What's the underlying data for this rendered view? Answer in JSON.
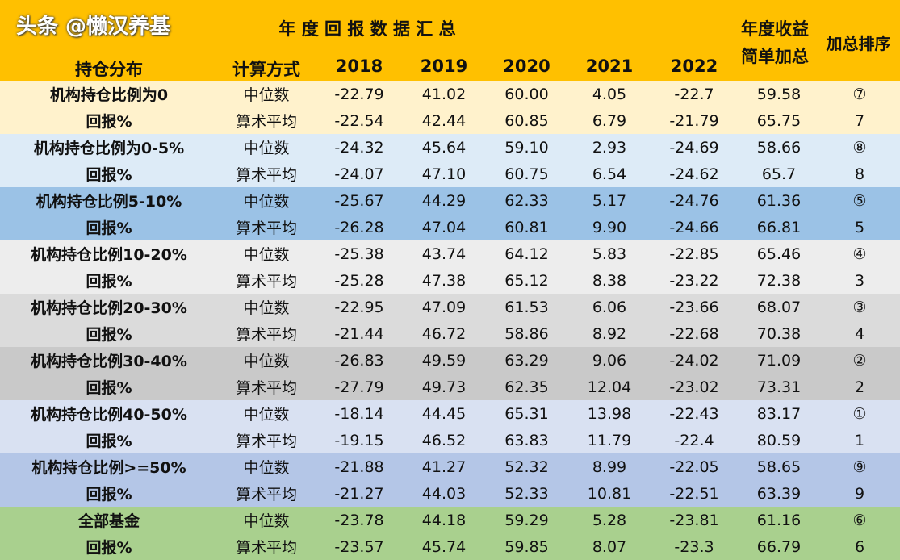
{
  "header": {
    "title": "年 度 回 报 数 据 汇 总",
    "col_group": "持仓分布",
    "col_method": "计算方式",
    "years": [
      "2018",
      "2019",
      "2020",
      "2021",
      "2022"
    ],
    "col_sum": [
      "年度收益",
      "简单加总"
    ],
    "col_rank": "加总排序"
  },
  "colors": {
    "header": "#FFC000",
    "groups": [
      "#FFF2CC",
      "#DDEBF7",
      "#9BC2E6",
      "#EDEDED",
      "#DBDBDB",
      "#C9C9C9",
      "#D9E1F2",
      "#B4C6E7",
      "#A9D08E"
    ]
  },
  "groups": [
    {
      "name": "机构持仓比例为0",
      "sub": "回报%",
      "rows": [
        [
          "中位数",
          "-22.79",
          "41.02",
          "60.00",
          "4.05",
          "-22.7",
          "59.58",
          "⑦"
        ],
        [
          "算术平均",
          "-22.54",
          "42.44",
          "60.85",
          "6.79",
          "-21.79",
          "65.75",
          "7"
        ]
      ]
    },
    {
      "name": "机构持仓比例为0-5%",
      "sub": "回报%",
      "rows": [
        [
          "中位数",
          "-24.32",
          "45.64",
          "59.10",
          "2.93",
          "-24.69",
          "58.66",
          "⑧"
        ],
        [
          "算术平均",
          "-24.07",
          "47.10",
          "60.75",
          "6.54",
          "-24.62",
          "65.7",
          "8"
        ]
      ]
    },
    {
      "name": "机构持仓比例5-10%",
      "sub": "回报%",
      "rows": [
        [
          "中位数",
          "-25.67",
          "44.29",
          "62.33",
          "5.17",
          "-24.76",
          "61.36",
          "⑤"
        ],
        [
          "算术平均",
          "-26.28",
          "47.04",
          "60.81",
          "9.90",
          "-24.66",
          "66.81",
          "5"
        ]
      ]
    },
    {
      "name": "机构持仓比例10-20%",
      "sub": "回报%",
      "rows": [
        [
          "中位数",
          "-25.38",
          "43.74",
          "64.12",
          "5.83",
          "-22.85",
          "65.46",
          "④"
        ],
        [
          "算术平均",
          "-25.28",
          "47.38",
          "65.12",
          "8.38",
          "-23.22",
          "72.38",
          "3"
        ]
      ]
    },
    {
      "name": "机构持仓比例20-30%",
      "sub": "回报%",
      "rows": [
        [
          "中位数",
          "-22.95",
          "47.09",
          "61.53",
          "6.06",
          "-23.66",
          "68.07",
          "③"
        ],
        [
          "算术平均",
          "-21.44",
          "46.72",
          "58.86",
          "8.92",
          "-22.68",
          "70.38",
          "4"
        ]
      ]
    },
    {
      "name": "机构持仓比例30-40%",
      "sub": "回报%",
      "rows": [
        [
          "中位数",
          "-26.83",
          "49.59",
          "63.29",
          "9.06",
          "-24.02",
          "71.09",
          "②"
        ],
        [
          "算术平均",
          "-27.79",
          "49.73",
          "62.35",
          "12.04",
          "-23.02",
          "73.31",
          "2"
        ]
      ]
    },
    {
      "name": "机构持仓比例40-50%",
      "sub": "回报%",
      "rows": [
        [
          "中位数",
          "-18.14",
          "44.45",
          "65.31",
          "13.98",
          "-22.43",
          "83.17",
          "①"
        ],
        [
          "算术平均",
          "-19.15",
          "46.52",
          "63.83",
          "11.79",
          "-22.4",
          "80.59",
          "1"
        ]
      ]
    },
    {
      "name": "机构持仓比例>=50%",
      "sub": "回报%",
      "rows": [
        [
          "中位数",
          "-21.88",
          "41.27",
          "52.32",
          "8.99",
          "-22.05",
          "58.65",
          "⑨"
        ],
        [
          "算术平均",
          "-21.27",
          "44.03",
          "52.33",
          "10.81",
          "-22.51",
          "63.39",
          "9"
        ]
      ]
    },
    {
      "name": "全部基金",
      "sub": "回报%",
      "rows": [
        [
          "中位数",
          "-23.78",
          "44.18",
          "59.29",
          "5.28",
          "-23.81",
          "61.16",
          "⑥"
        ],
        [
          "算术平均",
          "-23.57",
          "45.74",
          "59.85",
          "8.07",
          "-23.3",
          "66.79",
          "6"
        ]
      ]
    }
  ],
  "watermark": "头条 @懒汉养基"
}
